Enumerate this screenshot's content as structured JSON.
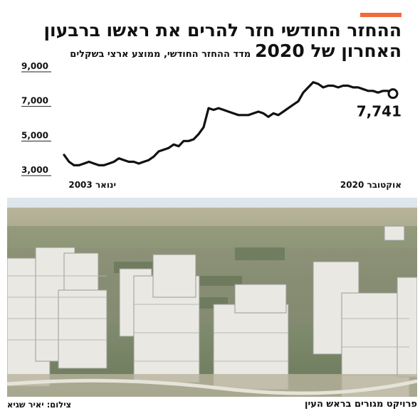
{
  "title_line1": "ההחזר החודשי חזר להרים את ראשו ברבעון",
  "title_line2": "האחרון של 2020",
  "subtitle": "מדד ההחזר החודשי, ממוצע ארצי בשקלים",
  "photo_credit": "צילום: יאיר שגיא",
  "project_credit": "פרויקט מגורים בראש העין",
  "colors": {
    "accent": "#f26b3a",
    "line": "#111111"
  },
  "chart_data": {
    "type": "line",
    "y_ticks": [
      "9,000",
      "7,000",
      "5,000",
      "3,000"
    ],
    "y_tick_values": [
      9000,
      7000,
      5000,
      3000
    ],
    "ylim": [
      3000,
      9600
    ],
    "x_start_label": "ינואר 2003",
    "x_end_label": "אוקטובר 2020",
    "end_value_label": "7,741",
    "grid": false,
    "values": [
      4200,
      3800,
      3600,
      3600,
      3700,
      3800,
      3700,
      3600,
      3600,
      3700,
      3800,
      4000,
      3900,
      3800,
      3800,
      3700,
      3800,
      3900,
      4100,
      4400,
      4500,
      4600,
      4800,
      4700,
      5000,
      5000,
      5100,
      5400,
      5800,
      6900,
      6800,
      6900,
      6800,
      6700,
      6600,
      6500,
      6500,
      6500,
      6600,
      6700,
      6600,
      6400,
      6600,
      6500,
      6700,
      6900,
      7100,
      7300,
      7800,
      8100,
      8400,
      8300,
      8100,
      8200,
      8200,
      8100,
      8200,
      8200,
      8100,
      8100,
      8000,
      7900,
      7900,
      7800,
      7900,
      7900,
      7741
    ]
  }
}
